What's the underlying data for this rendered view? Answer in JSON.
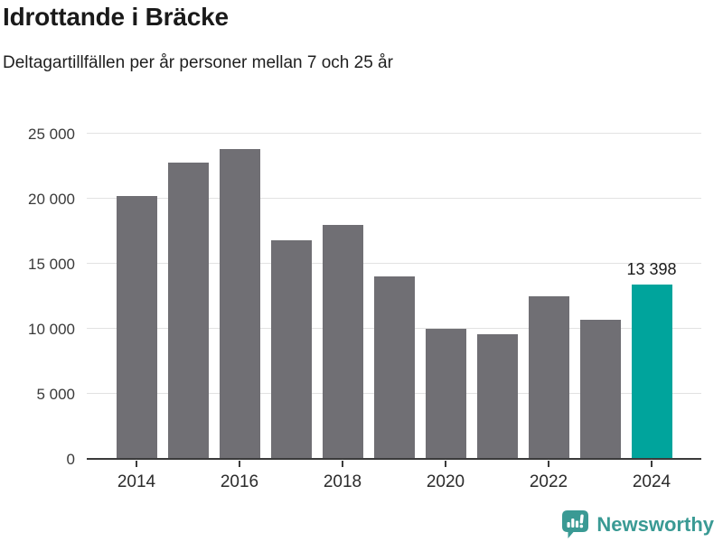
{
  "header": {
    "title": "Idrottande i Bräcke",
    "subtitle": "Deltagartillfällen per år personer mellan 7 och 25 år"
  },
  "chart_data": {
    "type": "bar",
    "categories": [
      "2014",
      "2015",
      "2016",
      "2017",
      "2018",
      "2019",
      "2020",
      "2021",
      "2022",
      "2023",
      "2024"
    ],
    "values": [
      20200,
      22800,
      23800,
      16800,
      18000,
      14000,
      10000,
      9600,
      12500,
      10700,
      13398
    ],
    "title": "Idrottande i Bräcke",
    "subtitle": "Deltagartillfällen per år personer mellan 7 och 25 år",
    "xlabel": "",
    "ylabel": "",
    "ylim": [
      0,
      25000
    ],
    "grid": true,
    "yticks": [
      {
        "value": 0,
        "label": "0"
      },
      {
        "value": 5000,
        "label": "5 000"
      },
      {
        "value": 10000,
        "label": "10 000"
      },
      {
        "value": 15000,
        "label": "15 000"
      },
      {
        "value": 20000,
        "label": "20 000"
      },
      {
        "value": 25000,
        "label": "25 000"
      }
    ],
    "xticks": [
      {
        "index": 0,
        "label": "2014"
      },
      {
        "index": 2,
        "label": "2016"
      },
      {
        "index": 4,
        "label": "2018"
      },
      {
        "index": 6,
        "label": "2020"
      },
      {
        "index": 8,
        "label": "2022"
      },
      {
        "index": 10,
        "label": "2024"
      }
    ],
    "highlight_index": 10,
    "annotation": {
      "index": 10,
      "label": "13 398"
    },
    "bar_color": "#706f74",
    "highlight_color": "#00a49c",
    "gridline_color": "#e2e2e2",
    "axis_color": "#3b3b3b"
  },
  "footer": {
    "brand": "Newsworthy",
    "brand_color": "#3a9a94"
  }
}
